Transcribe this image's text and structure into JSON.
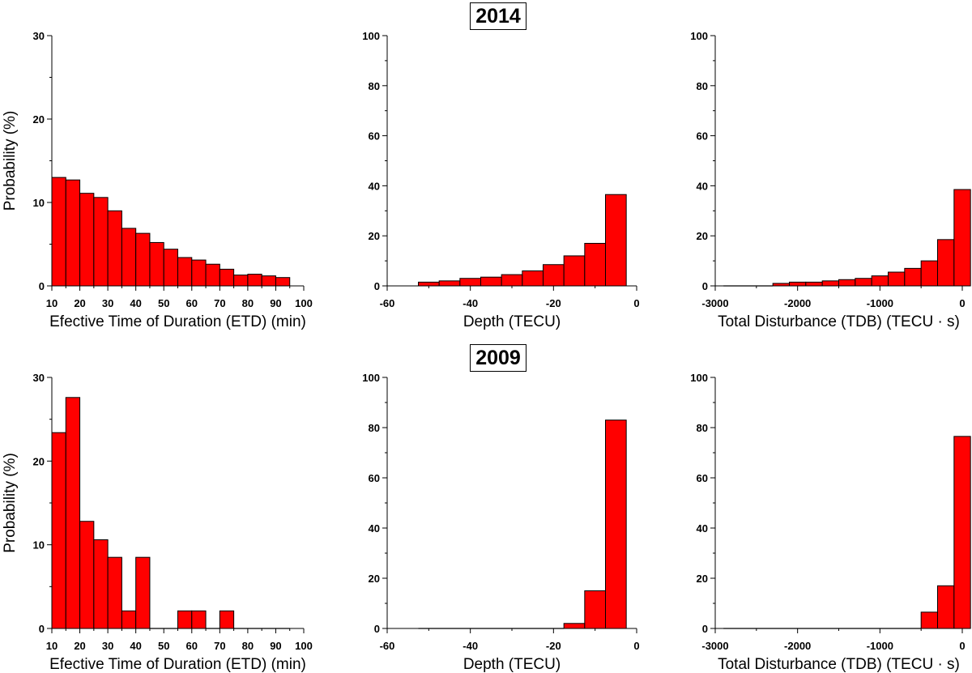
{
  "rows": [
    {
      "year": "2014"
    },
    {
      "year": "2009"
    }
  ],
  "colors": {
    "bar": "#ff0000",
    "bar_stroke": "#000000",
    "axis": "#000000"
  },
  "chart_data": [
    {
      "type": "bar",
      "row": 0,
      "col": 0,
      "title": "",
      "xlabel": "Efective Time of Duration (ETD) (min)",
      "ylabel": "Probability (%)",
      "xlim": [
        10,
        100
      ],
      "ylim": [
        0,
        30
      ],
      "xticks": [
        10,
        20,
        30,
        40,
        50,
        60,
        70,
        80,
        90,
        100
      ],
      "yticks": [
        0,
        10,
        20,
        30
      ],
      "bin_width": 5,
      "bins": [
        12.5,
        17.5,
        22.5,
        27.5,
        32.5,
        37.5,
        42.5,
        47.5,
        52.5,
        57.5,
        62.5,
        67.5,
        72.5,
        77.5,
        82.5,
        87.5,
        92.5
      ],
      "values": [
        13.0,
        12.7,
        11.1,
        10.6,
        9.0,
        6.9,
        6.3,
        5.2,
        4.4,
        3.4,
        3.1,
        2.6,
        2.0,
        1.3,
        1.4,
        1.2,
        1.0
      ]
    },
    {
      "type": "bar",
      "row": 0,
      "col": 1,
      "title": "",
      "xlabel": "Depth (TECU)",
      "ylabel": "",
      "xlim": [
        -60,
        0
      ],
      "ylim": [
        0,
        100
      ],
      "xticks": [
        -60,
        -40,
        -20,
        0
      ],
      "yticks": [
        0,
        20,
        40,
        60,
        80,
        100
      ],
      "bin_width": 5,
      "bins": [
        -50,
        -45,
        -40,
        -35,
        -30,
        -25,
        -20,
        -15,
        -10,
        -5
      ],
      "values": [
        1.5,
        2,
        3,
        3.5,
        4.5,
        6,
        8.5,
        12,
        17,
        36.5
      ]
    },
    {
      "type": "bar",
      "row": 0,
      "col": 2,
      "title": "",
      "xlabel": "Total Disturbance (TDB) (TECU · s)",
      "ylabel": "",
      "xlim": [
        -3000,
        0
      ],
      "ylim": [
        0,
        100
      ],
      "xticks": [
        -3000,
        -2000,
        -1000,
        0
      ],
      "yticks": [
        0,
        20,
        40,
        60,
        80,
        100
      ],
      "bin_width": 200,
      "bins": [
        -2800,
        -2600,
        -2400,
        -2200,
        -2000,
        -1800,
        -1600,
        -1400,
        -1200,
        -1000,
        -800,
        -600,
        -400,
        -200,
        0
      ],
      "values": [
        0,
        0,
        0,
        1,
        1.5,
        1.5,
        2,
        2.5,
        3,
        4,
        5.5,
        7,
        10,
        18.5,
        38.5
      ]
    },
    {
      "type": "bar",
      "row": 1,
      "col": 0,
      "title": "",
      "xlabel": "Efective Time of Duration (ETD) (min)",
      "ylabel": "Probability (%)",
      "xlim": [
        10,
        100
      ],
      "ylim": [
        0,
        30
      ],
      "xticks": [
        10,
        20,
        30,
        40,
        50,
        60,
        70,
        80,
        90,
        100
      ],
      "yticks": [
        0,
        10,
        20,
        30
      ],
      "bin_width": 5,
      "bins": [
        12.5,
        17.5,
        22.5,
        27.5,
        32.5,
        37.5,
        42.5,
        47.5,
        52.5,
        57.5,
        62.5,
        67.5,
        72.5,
        77.5,
        82.5,
        87.5,
        92.5
      ],
      "values": [
        23.4,
        27.6,
        12.8,
        10.6,
        8.5,
        2.1,
        8.5,
        0,
        0,
        2.1,
        2.1,
        0,
        2.1,
        0,
        0,
        0,
        0
      ]
    },
    {
      "type": "bar",
      "row": 1,
      "col": 1,
      "title": "",
      "xlabel": "Depth (TECU)",
      "ylabel": "",
      "xlim": [
        -60,
        0
      ],
      "ylim": [
        0,
        100
      ],
      "xticks": [
        -60,
        -40,
        -20,
        0
      ],
      "yticks": [
        0,
        20,
        40,
        60,
        80,
        100
      ],
      "bin_width": 5,
      "bins": [
        -50,
        -45,
        -40,
        -35,
        -30,
        -25,
        -20,
        -15,
        -10,
        -5
      ],
      "values": [
        0,
        0,
        0,
        0,
        0,
        0,
        0,
        2,
        15,
        83
      ]
    },
    {
      "type": "bar",
      "row": 1,
      "col": 2,
      "title": "",
      "xlabel": "Total Disturbance (TDB) (TECU · s)",
      "ylabel": "",
      "xlim": [
        -3000,
        0
      ],
      "ylim": [
        0,
        100
      ],
      "xticks": [
        -3000,
        -2000,
        -1000,
        0
      ],
      "yticks": [
        0,
        20,
        40,
        60,
        80,
        100
      ],
      "bin_width": 200,
      "bins": [
        -2800,
        -2600,
        -2400,
        -2200,
        -2000,
        -1800,
        -1600,
        -1400,
        -1200,
        -1000,
        -800,
        -600,
        -400,
        -200,
        0
      ],
      "values": [
        0,
        0,
        0,
        0,
        0,
        0,
        0,
        0,
        0,
        0,
        0,
        0,
        6.5,
        17,
        76.5
      ]
    }
  ]
}
